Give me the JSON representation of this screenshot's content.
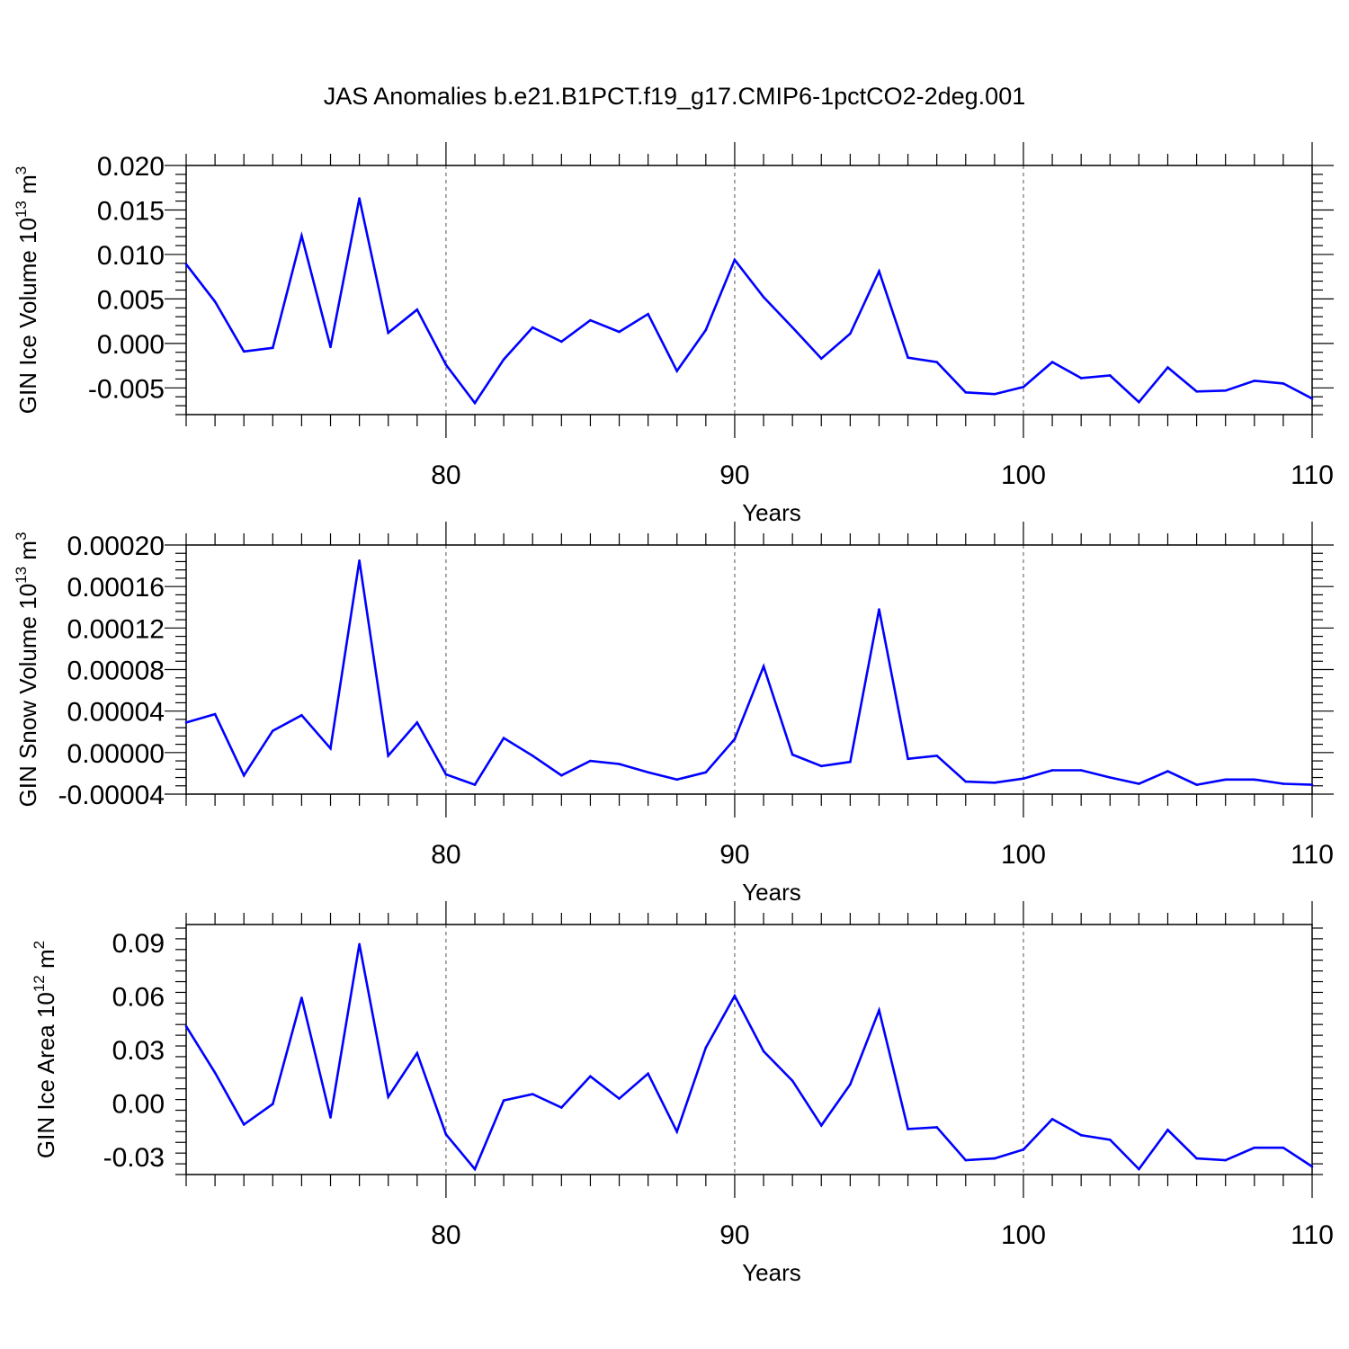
{
  "title": "JAS Anomalies b.e21.B1PCT.f19_g17.CMIP6-1pctCO2-2deg.001",
  "colors": {
    "series": "#0000ff",
    "axes": "#000000",
    "grid": "#555555"
  },
  "chart_data": [
    {
      "type": "line",
      "title": "",
      "xlabel": "Years",
      "ylabel": "GIN Ice Volume 10",
      "ylabel_sup": "13",
      "ylabel_unit": " m",
      "ylabel_unit_sup": "3",
      "xlim": [
        71,
        110
      ],
      "ylim": [
        -0.008,
        0.02
      ],
      "x_ticks": [
        80,
        90,
        100,
        110
      ],
      "y_ticks": [
        "0.020",
        "0.015",
        "0.010",
        "0.005",
        "0.000",
        "-0.005"
      ],
      "y_tick_values": [
        0.02,
        0.015,
        0.01,
        0.005,
        0.0,
        -0.005
      ],
      "grid": "vertical dashed at major x ticks",
      "x": [
        71,
        72,
        73,
        74,
        75,
        76,
        77,
        78,
        79,
        80,
        81,
        82,
        83,
        84,
        85,
        86,
        87,
        88,
        89,
        90,
        91,
        92,
        93,
        94,
        95,
        96,
        97,
        98,
        99,
        100,
        101,
        102,
        103,
        104,
        105,
        106,
        107,
        108,
        109,
        110
      ],
      "y": [
        0.0089,
        0.0047,
        -0.0009,
        -0.0005,
        0.0121,
        -0.0004,
        0.0163,
        0.0012,
        0.0038,
        -0.0024,
        -0.0067,
        -0.0018,
        0.0018,
        0.0002,
        0.0026,
        0.0013,
        0.0033,
        -0.0031,
        0.0015,
        0.0094,
        0.0052,
        0.0018,
        -0.0017,
        0.0011,
        0.0081,
        -0.0016,
        -0.0021,
        -0.0055,
        -0.0057,
        -0.0049,
        -0.0021,
        -0.0039,
        -0.0036,
        -0.0066,
        -0.0027,
        -0.0054,
        -0.0053,
        -0.0042,
        -0.0045,
        -0.0062
      ]
    },
    {
      "type": "line",
      "title": "",
      "xlabel": "Years",
      "ylabel": "GIN Snow Volume 10",
      "ylabel_sup": "13",
      "ylabel_unit": " m",
      "ylabel_unit_sup": "3",
      "xlim": [
        71,
        110
      ],
      "ylim": [
        -4e-05,
        0.0002
      ],
      "x_ticks": [
        80,
        90,
        100,
        110
      ],
      "y_ticks": [
        "0.00020",
        "0.00016",
        "0.00012",
        "0.00008",
        "0.00004",
        "0.00000",
        "-0.00004"
      ],
      "y_tick_values": [
        0.0002,
        0.00016,
        0.00012,
        8e-05,
        4e-05,
        0.0,
        -4e-05
      ],
      "grid": "vertical dashed at major x ticks",
      "x": [
        71,
        72,
        73,
        74,
        75,
        76,
        77,
        78,
        79,
        80,
        81,
        82,
        83,
        84,
        85,
        86,
        87,
        88,
        89,
        90,
        91,
        92,
        93,
        94,
        95,
        96,
        97,
        98,
        99,
        100,
        101,
        102,
        103,
        104,
        105,
        106,
        107,
        108,
        109,
        110
      ],
      "y": [
        2.9e-05,
        3.7e-05,
        -2.2e-05,
        2.1e-05,
        3.6e-05,
        4e-06,
        0.000185,
        -3e-06,
        2.9e-05,
        -2.1e-05,
        -3.1e-05,
        1.4e-05,
        -3e-06,
        -2.2e-05,
        -8e-06,
        -1.1e-05,
        -1.9e-05,
        -2.6e-05,
        -1.9e-05,
        1.3e-05,
        8.3e-05,
        -2e-06,
        -1.3e-05,
        -9e-06,
        0.000138,
        -6e-06,
        -3e-06,
        -2.8e-05,
        -2.9e-05,
        -2.5e-05,
        -1.7e-05,
        -1.7e-05,
        -2.4e-05,
        -3e-05,
        -1.8e-05,
        -3.1e-05,
        -2.6e-05,
        -2.6e-05,
        -3e-05,
        -3.1e-05
      ]
    },
    {
      "type": "line",
      "title": "",
      "xlabel": "Years",
      "ylabel": "GIN Ice Area 10",
      "ylabel_sup": "12",
      "ylabel_unit": " m",
      "ylabel_unit_sup": "2",
      "xlim": [
        71,
        110
      ],
      "ylim": [
        -0.04,
        0.1
      ],
      "x_ticks": [
        80,
        90,
        100,
        110
      ],
      "y_ticks": [
        "0.09",
        "0.06",
        "0.03",
        "0.00",
        "-0.03"
      ],
      "y_tick_values": [
        0.09,
        0.06,
        0.03,
        0.0,
        -0.03
      ],
      "grid": "vertical dashed at major x ticks",
      "x": [
        71,
        72,
        73,
        74,
        75,
        76,
        77,
        78,
        79,
        80,
        81,
        82,
        83,
        84,
        85,
        86,
        87,
        88,
        89,
        90,
        91,
        92,
        93,
        94,
        95,
        96,
        97,
        98,
        99,
        100,
        101,
        102,
        103,
        104,
        105,
        106,
        107,
        108,
        109,
        110
      ],
      "y": [
        0.043,
        0.017,
        -0.012,
        -0.0005,
        0.059,
        -0.008,
        0.089,
        0.0035,
        0.028,
        -0.0175,
        -0.037,
        0.0015,
        0.005,
        -0.0025,
        0.015,
        0.0025,
        0.0165,
        -0.016,
        0.031,
        0.06,
        0.029,
        0.0125,
        -0.0125,
        0.0105,
        0.052,
        -0.0145,
        -0.0135,
        -0.032,
        -0.031,
        -0.026,
        -0.009,
        -0.018,
        -0.0205,
        -0.037,
        -0.015,
        -0.031,
        -0.032,
        -0.025,
        -0.025,
        -0.0355
      ]
    }
  ]
}
